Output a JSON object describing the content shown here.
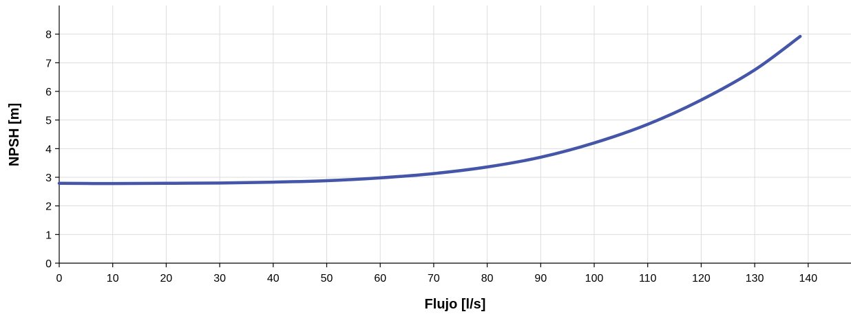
{
  "chart_data": {
    "type": "line",
    "title": "",
    "xlabel": "Flujo [l/s]",
    "ylabel": "NPSH [m]",
    "xlim": [
      0,
      148
    ],
    "ylim": [
      0,
      9
    ],
    "x_ticks": [
      0,
      10,
      20,
      30,
      40,
      50,
      60,
      70,
      80,
      90,
      100,
      110,
      120,
      130,
      140
    ],
    "x_tick_labels": [
      "0",
      "10",
      "20",
      "30",
      "40",
      "50",
      "60",
      "70",
      "80",
      "90",
      "100",
      "110",
      "120",
      "130",
      "140"
    ],
    "y_ticks": [
      0,
      1,
      2,
      3,
      4,
      5,
      6,
      7,
      8
    ],
    "y_tick_labels": [
      "0",
      "1",
      "2",
      "3",
      "4",
      "5",
      "6",
      "7",
      "8"
    ],
    "grid": true,
    "legend": "none",
    "series": [
      {
        "color": "#4556a8",
        "x": [
          0,
          10,
          20,
          30,
          40,
          50,
          60,
          70,
          80,
          90,
          100,
          110,
          120,
          130,
          138.5
        ],
        "y": [
          2.79,
          2.78,
          2.79,
          2.8,
          2.83,
          2.88,
          2.98,
          3.13,
          3.36,
          3.7,
          4.2,
          4.85,
          5.7,
          6.75,
          7.92
        ]
      }
    ]
  }
}
